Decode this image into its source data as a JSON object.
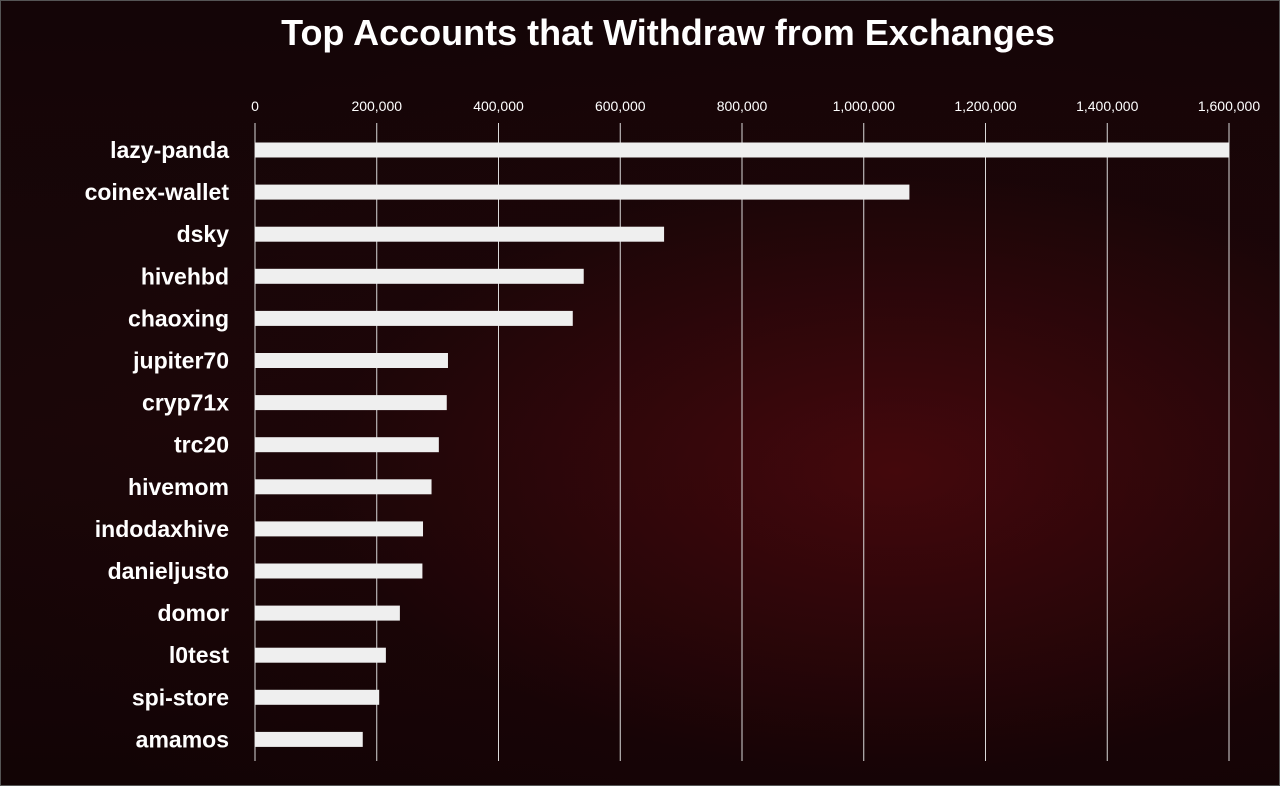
{
  "chart_data": {
    "type": "bar",
    "orientation": "horizontal",
    "title": "Top Accounts that Withdraw from Exchanges",
    "xlabel": "",
    "ylabel": "",
    "xlim": [
      0,
      1600000
    ],
    "tick_values": [
      0,
      200000,
      400000,
      600000,
      800000,
      1000000,
      1200000,
      1400000,
      1600000
    ],
    "tick_labels": [
      "0",
      "200,000",
      "400,000",
      "600,000",
      "800,000",
      "1,000,000",
      "1,200,000",
      "1,400,000",
      "1,600,000"
    ],
    "tick_position": "top",
    "grid": true,
    "legend": "none",
    "bar_color": "#efefef",
    "categories": [
      "lazy-panda",
      "coinex-wallet",
      "dsky",
      "hivehbd",
      "chaoxing",
      "jupiter70",
      "cryp71x",
      "trc20",
      "hivemom",
      "indodaxhive",
      "danieljusto",
      "domor",
      "l0test",
      "spi-store",
      "amamos"
    ],
    "values": [
      1600000,
      1075000,
      672000,
      540000,
      522000,
      317000,
      315000,
      302000,
      290000,
      276000,
      275000,
      238000,
      215000,
      204000,
      177000
    ]
  }
}
